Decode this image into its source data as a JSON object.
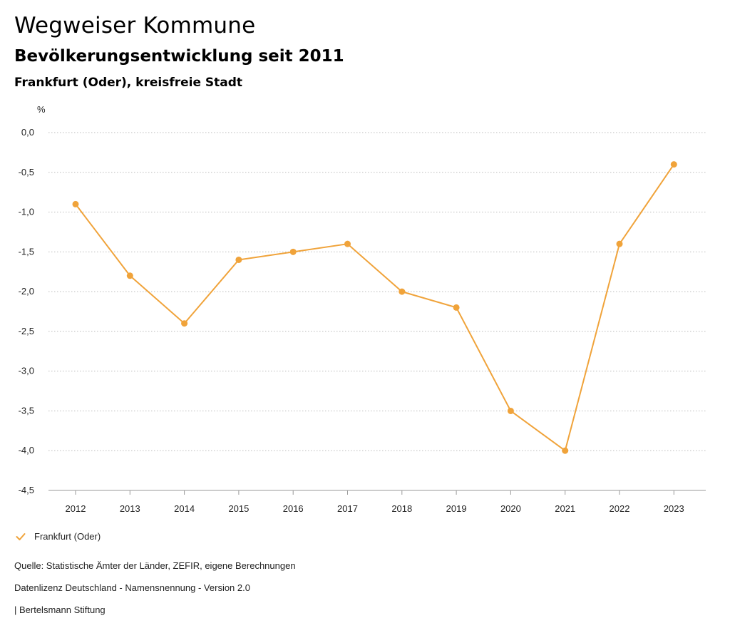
{
  "header": {
    "title": "Wegweiser Kommune",
    "subtitle": "Bevölkerungsentwicklung seit 2011",
    "region": "Frankfurt (Oder), kreisfreie Stadt"
  },
  "footer": {
    "source": "Quelle: Statistische Ämter der Länder, ZEFIR, eigene Berechnungen",
    "license": "Datenlizenz Deutschland - Namensnennung - Version 2.0",
    "brand": "| Bertelsmann Stiftung"
  },
  "colors": {
    "series": "#f0a33a",
    "grid": "#bbbbbb"
  },
  "chart_data": {
    "type": "line",
    "title": "Bevölkerungsentwicklung seit 2011",
    "ylabel": "%",
    "xlabel": "",
    "ylim": [
      -4.5,
      0.0
    ],
    "yticks": [
      0.0,
      -0.5,
      -1.0,
      -1.5,
      -2.0,
      -2.5,
      -3.0,
      -3.5,
      -4.0,
      -4.5
    ],
    "ytick_labels": [
      "0,0",
      "-0,5",
      "-1,0",
      "-1,5",
      "-2,0",
      "-2,5",
      "-3,0",
      "-3,5",
      "-4,0",
      "-4,5"
    ],
    "categories": [
      "2012",
      "2013",
      "2014",
      "2015",
      "2016",
      "2017",
      "2018",
      "2019",
      "2020",
      "2021",
      "2022",
      "2023"
    ],
    "grid": "horizontal dotted",
    "legend": "bottom-left",
    "series": [
      {
        "name": "Frankfurt (Oder)",
        "values": [
          -0.9,
          -1.8,
          -2.4,
          -1.6,
          -1.5,
          -1.4,
          -2.0,
          -2.2,
          -3.5,
          -4.0,
          -1.4,
          -0.4
        ]
      }
    ]
  }
}
